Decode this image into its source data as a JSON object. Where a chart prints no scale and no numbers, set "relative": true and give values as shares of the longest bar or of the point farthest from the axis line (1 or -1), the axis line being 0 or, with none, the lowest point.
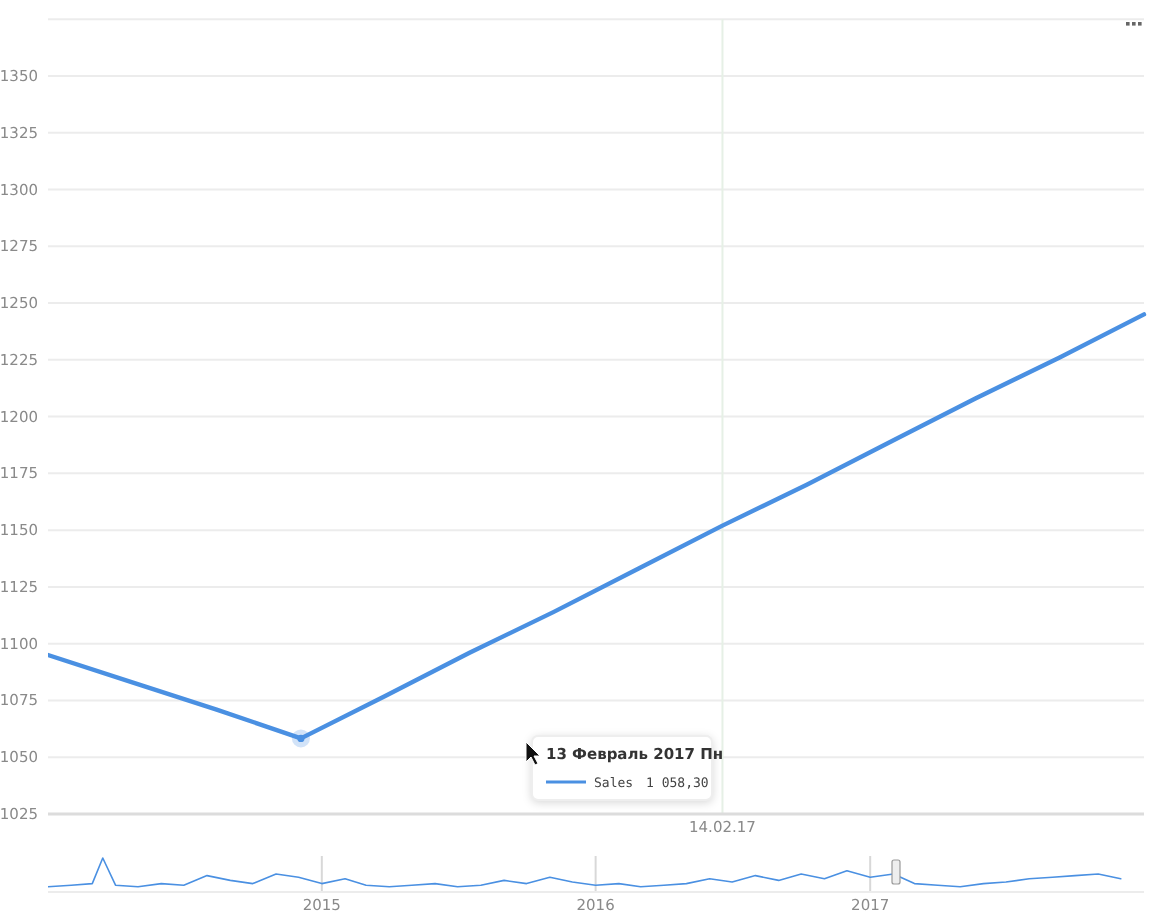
{
  "chart_data": [
    {
      "type": "line",
      "categories": [
        null,
        null,
        null,
        null,
        null,
        null,
        null,
        null,
        "14.02.17",
        null,
        null,
        null,
        null,
        null
      ],
      "series": [
        {
          "name": "Sales",
          "color": "#4a90e2",
          "values": [
            1095,
            1083,
            1071,
            1058.3,
            1077,
            1096,
            1114,
            1133,
            1152,
            1170,
            1189,
            1208,
            1226,
            1245
          ]
        }
      ],
      "ylim": [
        1025,
        1375
      ],
      "yticks": [
        1025,
        1050,
        1075,
        1100,
        1125,
        1150,
        1175,
        1200,
        1225,
        1250,
        1275,
        1300,
        1325,
        1350,
        {
          "value": 1375,
          "label": null
        }
      ],
      "grid": true,
      "marker": "none",
      "annotations": [
        "13 Февраль 2017 Пн",
        "1 058,30"
      ]
    },
    {
      "type": "line",
      "relative": true,
      "color": "#4a90e2",
      "marker": "none",
      "grid": "x",
      "x": [
        "2014-01-01",
        "2014-02-01",
        "2014-03-01",
        "2014-03-15",
        "2014-04-01",
        "2014-05-01",
        "2014-06-01",
        "2014-07-01",
        "2014-08-01",
        "2014-09-01",
        "2014-10-01",
        "2014-11-01",
        "2014-12-01",
        "2015-01-01",
        "2015-02-01",
        "2015-03-01",
        "2015-04-01",
        "2015-05-01",
        "2015-06-01",
        "2015-07-01",
        "2015-08-01",
        "2015-09-01",
        "2015-10-01",
        "2015-11-01",
        "2015-12-01",
        "2016-01-01",
        "2016-02-01",
        "2016-03-01",
        "2016-04-01",
        "2016-05-01",
        "2016-06-01",
        "2016-07-01",
        "2016-08-01",
        "2016-09-01",
        "2016-10-01",
        "2016-11-01",
        "2016-12-01",
        "2017-01-01",
        "2017-02-01",
        "2017-03-01",
        "2017-04-01",
        "2017-05-01",
        "2017-06-01",
        "2017-07-01",
        "2017-08-01",
        "2017-09-01",
        "2017-10-01",
        "2017-11-01",
        "2017-12-01"
      ],
      "values": [
        0.1,
        0.15,
        0.2,
        1,
        0.15,
        0.1,
        0.2,
        0.15,
        0.45,
        0.3,
        0.2,
        0.5,
        0.4,
        0.2,
        0.35,
        0.15,
        0.1,
        0.15,
        0.2,
        0.1,
        0.15,
        0.3,
        0.2,
        0.4,
        0.25,
        0.15,
        0.2,
        0.1,
        0.15,
        0.2,
        0.35,
        0.25,
        0.45,
        0.3,
        0.5,
        0.35,
        0.6,
        0.4,
        0.5,
        0.2,
        0.15,
        0.1,
        0.2,
        0.25,
        0.35,
        0.4,
        0.45,
        0.5,
        0.35
      ],
      "xlim": [
        "2014-01-01",
        "2018-01-01"
      ],
      "xticks": [
        {
          "value": "2015-01-01",
          "label": "2015"
        },
        {
          "value": "2016-01-01",
          "label": "2016"
        },
        {
          "value": "2017-01-01",
          "label": "2017"
        }
      ]
    }
  ]
}
